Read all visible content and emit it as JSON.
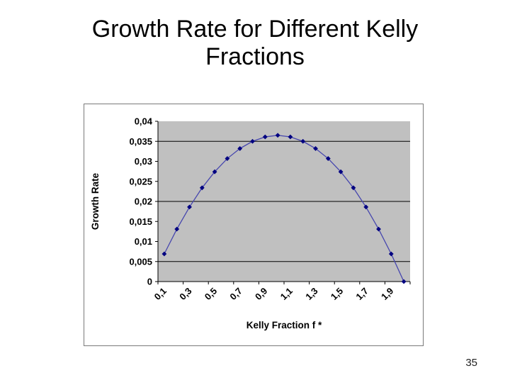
{
  "slide": {
    "title_line1": "Growth Rate for Different Kelly",
    "title_line2": "Fractions",
    "page_number": "35"
  },
  "chart_data": {
    "type": "line",
    "title": "",
    "xlabel": "Kelly Fraction f *",
    "ylabel": "Growth Rate",
    "x": [
      0.1,
      0.2,
      0.3,
      0.4,
      0.5,
      0.6,
      0.7,
      0.8,
      0.9,
      1.0,
      1.1,
      1.2,
      1.3,
      1.4,
      1.5,
      1.6,
      1.7,
      1.8,
      1.9,
      2.0
    ],
    "values": [
      0.0069,
      0.0131,
      0.0186,
      0.0234,
      0.0274,
      0.0307,
      0.0332,
      0.035,
      0.0361,
      0.0365,
      0.0361,
      0.035,
      0.0332,
      0.0307,
      0.0274,
      0.0234,
      0.0186,
      0.0131,
      0.0069,
      0.0
    ],
    "x_tick_labels": [
      "0,1",
      "0,3",
      "0,5",
      "0,7",
      "0,9",
      "1,1",
      "1,3",
      "1,5",
      "1,7",
      "1,9"
    ],
    "y_tick_labels": [
      "0",
      "0,005",
      "0,01",
      "0,015",
      "0,02",
      "0,025",
      "0,03",
      "0,035",
      "0,04"
    ],
    "ylim": [
      0,
      0.04
    ],
    "y_major_unit": 0.005,
    "gridlines_at": [
      0.005,
      0.02,
      0.035
    ],
    "grid": "horizontal",
    "legend": "none",
    "plot_bg_color": "#c0c0c0",
    "line_color": "#4646ae",
    "marker_color": "#000080",
    "marker": "diamond",
    "axis_color": "#000000"
  }
}
